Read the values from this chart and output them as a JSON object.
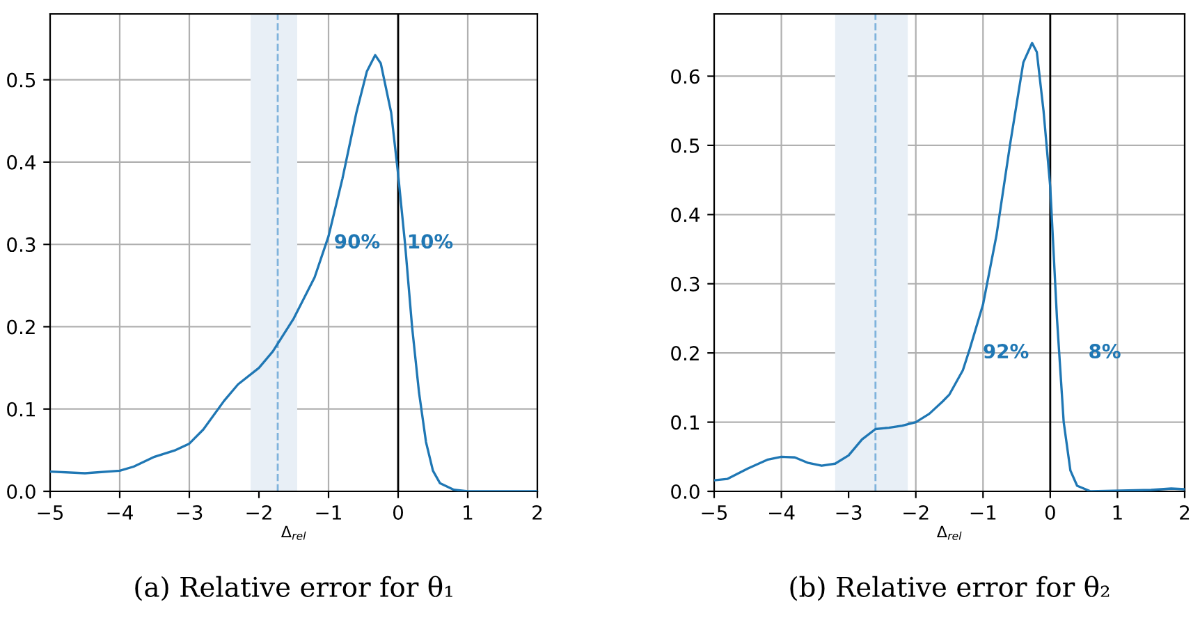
{
  "chart_data": [
    {
      "type": "line",
      "title": "(a) Relative error for θ₁",
      "xlabel": "Δ$_{rel}$",
      "series": [
        {
          "color": "#1f77b4",
          "x": [
            -5,
            -4.5,
            -4,
            -3.8,
            -3.5,
            -3.2,
            -3,
            -2.8,
            -2.5,
            -2.3,
            -2,
            -1.8,
            -1.5,
            -1.2,
            -1,
            -0.8,
            -0.6,
            -0.45,
            -0.33,
            -0.25,
            -0.1,
            0,
            0.1,
            0.2,
            0.3,
            0.4,
            0.5,
            0.6,
            0.8,
            1,
            2
          ],
          "values": [
            0.024,
            0.022,
            0.025,
            0.03,
            0.042,
            0.05,
            0.058,
            0.075,
            0.11,
            0.13,
            0.15,
            0.17,
            0.21,
            0.26,
            0.31,
            0.38,
            0.46,
            0.51,
            0.53,
            0.52,
            0.46,
            0.385,
            0.3,
            0.2,
            0.12,
            0.06,
            0.025,
            0.01,
            0.002,
            0,
            0
          ]
        }
      ],
      "xlim": [
        -5,
        2
      ],
      "ylim": [
        0,
        0.58
      ],
      "xticks": [
        -5,
        -4,
        -3,
        -2,
        -1,
        0,
        1,
        2
      ],
      "yticks": [
        {
          "value": 0,
          "label": "0.0"
        },
        0.1,
        0.2,
        0.3,
        0.4,
        0.5
      ],
      "grid": true,
      "line_style": "solid",
      "marker": "none",
      "ref_lines": [
        {
          "axis": "x",
          "value": -1.73,
          "color": "#7fb3dc",
          "line_style": "dashed"
        },
        {
          "axis": "x",
          "value": 0,
          "color": "#000000",
          "line_style": "solid"
        }
      ],
      "bands": [
        {
          "axis": "x",
          "from": -2.12,
          "to": -1.45,
          "color": "#e8eff6"
        }
      ],
      "annotations": [
        "90%",
        "10%"
      ]
    },
    {
      "type": "line",
      "title": "(b) Relative error for θ₂",
      "xlabel": "Δ$_{rel}$",
      "series": [
        {
          "color": "#1f77b4",
          "x": [
            -5,
            -4.8,
            -4.5,
            -4.2,
            -4,
            -3.8,
            -3.6,
            -3.4,
            -3.2,
            -3,
            -2.8,
            -2.6,
            -2.4,
            -2.2,
            -2,
            -1.8,
            -1.6,
            -1.5,
            -1.3,
            -1.2,
            -1,
            -0.8,
            -0.6,
            -0.4,
            -0.27,
            -0.2,
            -0.1,
            0,
            0.1,
            0.2,
            0.3,
            0.4,
            0.6,
            1.5,
            1.8,
            2
          ],
          "values": [
            0.016,
            0.018,
            0.033,
            0.046,
            0.05,
            0.049,
            0.041,
            0.037,
            0.04,
            0.052,
            0.075,
            0.09,
            0.092,
            0.095,
            0.1,
            0.112,
            0.13,
            0.14,
            0.175,
            0.205,
            0.27,
            0.37,
            0.5,
            0.62,
            0.648,
            0.635,
            0.55,
            0.44,
            0.25,
            0.1,
            0.03,
            0.008,
            0,
            0.002,
            0.004,
            0.003
          ]
        }
      ],
      "xlim": [
        -5,
        2
      ],
      "ylim": [
        0,
        0.69
      ],
      "xticks": [
        -5,
        -4,
        -3,
        -2,
        -1,
        0,
        1,
        2
      ],
      "yticks": [
        {
          "value": 0,
          "label": "0.0"
        },
        0.1,
        0.2,
        0.3,
        0.4,
        0.5,
        0.6
      ],
      "grid": true,
      "line_style": "solid",
      "marker": "none",
      "ref_lines": [
        {
          "axis": "x",
          "value": -2.6,
          "color": "#7fb3dc",
          "line_style": "dashed"
        },
        {
          "axis": "x",
          "value": 0,
          "color": "#000000",
          "line_style": "solid"
        }
      ],
      "bands": [
        {
          "axis": "x",
          "from": -3.2,
          "to": -2.12,
          "color": "#e8eff6"
        }
      ],
      "annotations": [
        "92%",
        "8%"
      ]
    }
  ]
}
